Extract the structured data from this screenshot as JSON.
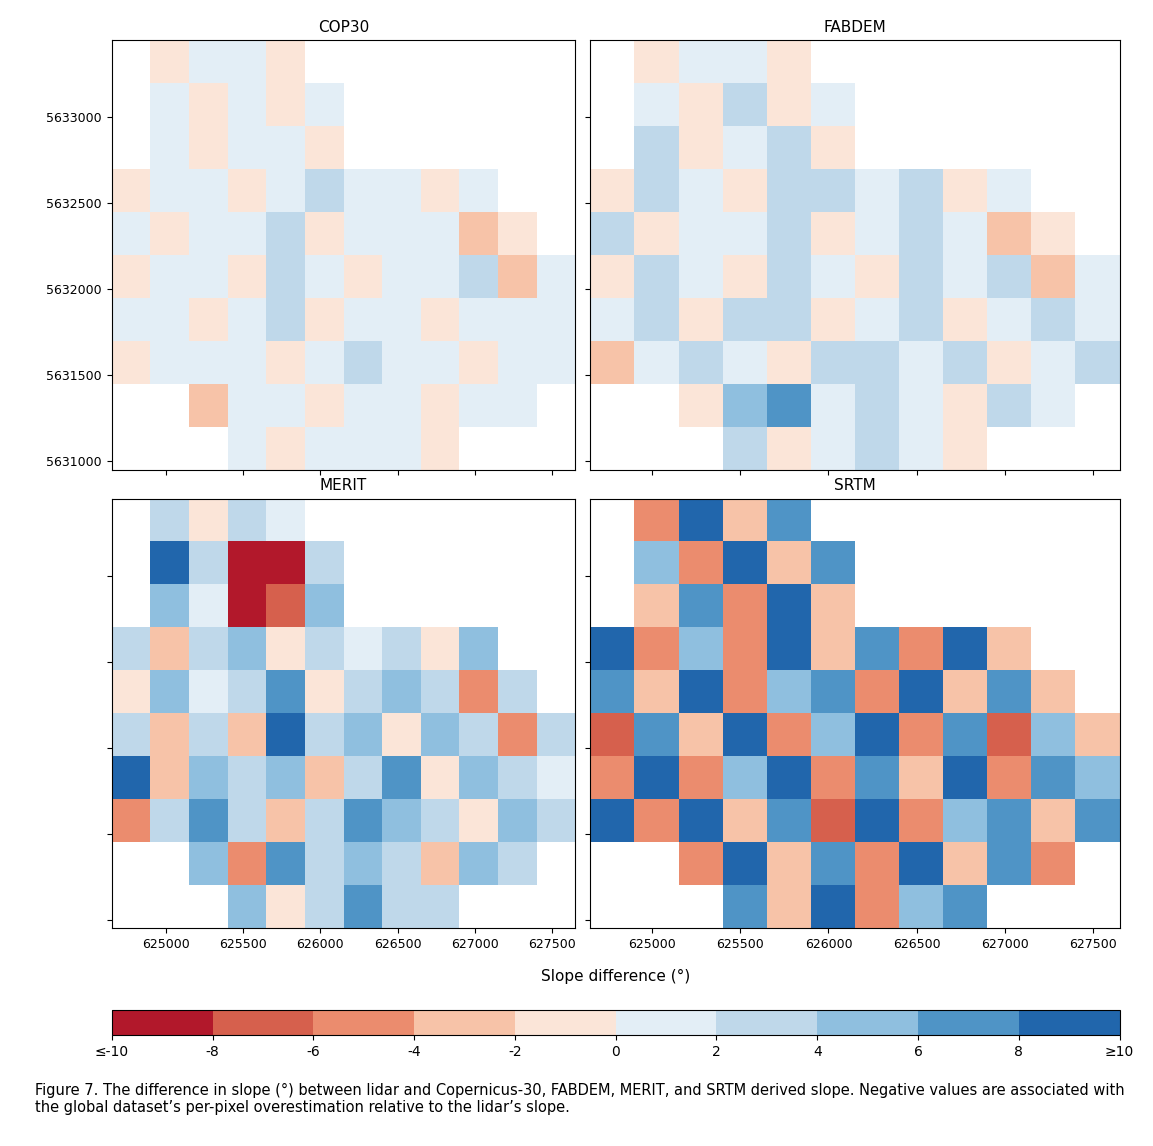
{
  "chart_data": [
    {
      "type": "heatmap",
      "title": "COP30",
      "tick_labels": "y",
      "x_edges": [
        624650,
        624900,
        625150,
        625400,
        625650,
        625900,
        626150,
        626400,
        626650,
        626900,
        627150,
        627400,
        627650
      ],
      "y_edges": [
        5633450,
        5633200,
        5632950,
        5632700,
        5632450,
        5632200,
        5631950,
        5631700,
        5631450,
        5631200,
        5630950
      ],
      "xlim": [
        624650,
        627650
      ],
      "ylim": [
        5630950,
        5633450
      ],
      "xticks": [
        625000,
        625500,
        626000,
        626500,
        627000,
        627500
      ],
      "yticks": [
        5631000,
        5631500,
        5632000,
        5632500,
        5633000
      ],
      "values": [
        [
          null,
          -1,
          1,
          0,
          -1,
          null,
          null,
          null,
          null,
          null,
          null,
          null
        ],
        [
          null,
          0,
          -1,
          1,
          -1,
          0,
          null,
          null,
          null,
          null,
          null,
          null
        ],
        [
          null,
          1,
          -1,
          0,
          1,
          -1,
          null,
          null,
          null,
          null,
          null,
          null
        ],
        [
          -1,
          1,
          0,
          -1,
          1,
          2,
          0,
          1,
          -1,
          0,
          null,
          null
        ],
        [
          1,
          -1,
          1,
          0,
          2,
          -1,
          1,
          0,
          1,
          -3,
          -1,
          null
        ],
        [
          -2,
          0,
          1,
          -1,
          3,
          0,
          -1,
          1,
          0,
          2,
          -4,
          1
        ],
        [
          0,
          1,
          -1,
          1,
          2,
          -1,
          0,
          1,
          -1,
          0,
          1,
          0
        ],
        [
          -1,
          0,
          1,
          0,
          -1,
          1,
          2,
          0,
          1,
          -1,
          0,
          1
        ],
        [
          null,
          null,
          -3,
          1,
          0,
          -1,
          1,
          0,
          -1,
          1,
          0,
          null
        ],
        [
          null,
          null,
          null,
          1,
          -1,
          0,
          1,
          0,
          -1,
          null,
          null,
          null
        ]
      ]
    },
    {
      "type": "heatmap",
      "title": "FABDEM",
      "tick_labels": false,
      "x_edges": [
        624650,
        624900,
        625150,
        625400,
        625650,
        625900,
        626150,
        626400,
        626650,
        626900,
        627150,
        627400,
        627650
      ],
      "y_edges": [
        5633450,
        5633200,
        5632950,
        5632700,
        5632450,
        5632200,
        5631950,
        5631700,
        5631450,
        5631200,
        5630950
      ],
      "xlim": [
        624650,
        627650
      ],
      "ylim": [
        5630950,
        5633450
      ],
      "xticks": [
        625000,
        625500,
        626000,
        626500,
        627000,
        627500
      ],
      "yticks": [
        5631000,
        5631500,
        5632000,
        5632500,
        5633000
      ],
      "values": [
        [
          null,
          -1,
          1,
          1,
          -1,
          null,
          null,
          null,
          null,
          null,
          null,
          null
        ],
        [
          null,
          1,
          -1,
          2,
          -1,
          0,
          null,
          null,
          null,
          null,
          null,
          null
        ],
        [
          null,
          2,
          -1,
          1,
          3,
          -1,
          null,
          null,
          null,
          null,
          null,
          null
        ],
        [
          -1,
          2,
          1,
          -1,
          3,
          2,
          1,
          2,
          -1,
          1,
          null,
          null
        ],
        [
          2,
          -1,
          1,
          1,
          3,
          -1,
          1,
          2,
          1,
          -3,
          -1,
          null
        ],
        [
          -2,
          3,
          1,
          -1,
          3,
          1,
          -1,
          2,
          1,
          2,
          -4,
          1
        ],
        [
          1,
          2,
          -1,
          2,
          3,
          -1,
          1,
          2,
          -1,
          1,
          2,
          1
        ],
        [
          -3,
          1,
          2,
          1,
          -1,
          2,
          3,
          1,
          2,
          -1,
          1,
          2
        ],
        [
          null,
          null,
          -2,
          4,
          6,
          1,
          2,
          1,
          -1,
          2,
          1,
          null
        ],
        [
          null,
          null,
          null,
          3,
          -1,
          1,
          2,
          1,
          -1,
          null,
          null,
          null
        ]
      ]
    },
    {
      "type": "heatmap",
      "title": "MERIT",
      "tick_labels": "x",
      "x_edges": [
        624650,
        624900,
        625150,
        625400,
        625650,
        625900,
        626150,
        626400,
        626650,
        626900,
        627150,
        627400,
        627650
      ],
      "y_edges": [
        5633450,
        5633200,
        5632950,
        5632700,
        5632450,
        5632200,
        5631950,
        5631700,
        5631450,
        5631200,
        5630950
      ],
      "xlim": [
        624650,
        627650
      ],
      "ylim": [
        5630950,
        5633450
      ],
      "xticks": [
        625000,
        625500,
        626000,
        626500,
        627000,
        627500
      ],
      "yticks": [
        5631000,
        5631500,
        5632000,
        5632500,
        5633000
      ],
      "values": [
        [
          null,
          3,
          -2,
          2,
          1,
          null,
          null,
          null,
          null,
          null,
          null,
          null
        ],
        [
          null,
          8,
          2,
          -10,
          -10,
          3,
          null,
          null,
          null,
          null,
          null,
          null
        ],
        [
          null,
          4,
          1,
          -10,
          -8,
          5,
          null,
          null,
          null,
          null,
          null,
          null
        ],
        [
          2,
          -3,
          3,
          4,
          -2,
          2,
          1,
          3,
          -2,
          4,
          null,
          null
        ],
        [
          -2,
          4,
          1,
          3,
          6,
          -1,
          2,
          5,
          3,
          -6,
          2,
          null
        ],
        [
          3,
          -4,
          2,
          -3,
          8,
          2,
          4,
          -2,
          5,
          3,
          -5,
          3
        ],
        [
          8,
          -3,
          4,
          2,
          5,
          -4,
          3,
          6,
          -2,
          4,
          2,
          1
        ],
        [
          -5,
          2,
          6,
          3,
          -3,
          2,
          7,
          4,
          3,
          -2,
          4,
          2
        ],
        [
          null,
          null,
          4,
          -6,
          6,
          3,
          5,
          2,
          -3,
          4,
          2,
          null
        ],
        [
          null,
          null,
          null,
          4,
          -2,
          3,
          6,
          2,
          3,
          null,
          null,
          null
        ]
      ]
    },
    {
      "type": "heatmap",
      "title": "SRTM",
      "tick_labels": "x",
      "x_edges": [
        624650,
        624900,
        625150,
        625400,
        625650,
        625900,
        626150,
        626400,
        626650,
        626900,
        627150,
        627400,
        627650
      ],
      "y_edges": [
        5633450,
        5633200,
        5632950,
        5632700,
        5632450,
        5632200,
        5631950,
        5631700,
        5631450,
        5631200,
        5630950
      ],
      "xlim": [
        624650,
        627650
      ],
      "ylim": [
        5630950,
        5633450
      ],
      "xticks": [
        625000,
        625500,
        626000,
        626500,
        627000,
        627500
      ],
      "yticks": [
        5631000,
        5631500,
        5632000,
        5632500,
        5633000
      ],
      "values": [
        [
          null,
          -6,
          8,
          -4,
          6,
          null,
          null,
          null,
          null,
          null,
          null,
          null
        ],
        [
          null,
          4,
          -6,
          8,
          -4,
          6,
          null,
          null,
          null,
          null,
          null,
          null
        ],
        [
          null,
          -4,
          6,
          -6,
          8,
          -4,
          null,
          null,
          null,
          null,
          null,
          null
        ],
        [
          8,
          -6,
          4,
          -6,
          8,
          -4,
          6,
          -6,
          8,
          -4,
          null,
          null
        ],
        [
          6,
          -4,
          8,
          -6,
          4,
          6,
          -6,
          8,
          -4,
          6,
          -4,
          null
        ],
        [
          -8,
          6,
          -4,
          8,
          -6,
          4,
          8,
          -6,
          6,
          -8,
          4,
          -4
        ],
        [
          -6,
          8,
          -6,
          4,
          8,
          -6,
          6,
          -4,
          8,
          -6,
          6,
          4
        ],
        [
          10,
          -6,
          8,
          -4,
          6,
          -8,
          8,
          -6,
          4,
          6,
          -4,
          6
        ],
        [
          null,
          null,
          -6,
          8,
          -4,
          6,
          -6,
          8,
          -4,
          6,
          -6,
          null
        ],
        [
          null,
          null,
          null,
          6,
          -4,
          8,
          -6,
          4,
          6,
          null,
          null,
          null
        ]
      ]
    }
  ],
  "colorbar": {
    "label": "Slope difference (°)",
    "bounds": [
      -10,
      -8,
      -6,
      -4,
      -2,
      0,
      2,
      4,
      6,
      8,
      10
    ],
    "colors": [
      "#b2182b",
      "#d6604d",
      "#eb8c6e",
      "#f7c3a8",
      "#fbe5d8",
      "#e3eef6",
      "#bfd8ea",
      "#8fbfdf",
      "#4f94c6",
      "#2166ac"
    ],
    "ticks": [
      {
        "value": -10,
        "label": "≤-10"
      },
      -8,
      -6,
      -4,
      -2,
      0,
      2,
      4,
      6,
      8,
      {
        "value": 10,
        "label": "≥10"
      }
    ]
  },
  "caption": "Figure 7. The difference in slope (°) between lidar and Copernicus-30, FABDEM, MERIT, and SRTM derived slope. Negative values are associated with the global dataset’s per-pixel overestimation relative to the lidar’s slope."
}
